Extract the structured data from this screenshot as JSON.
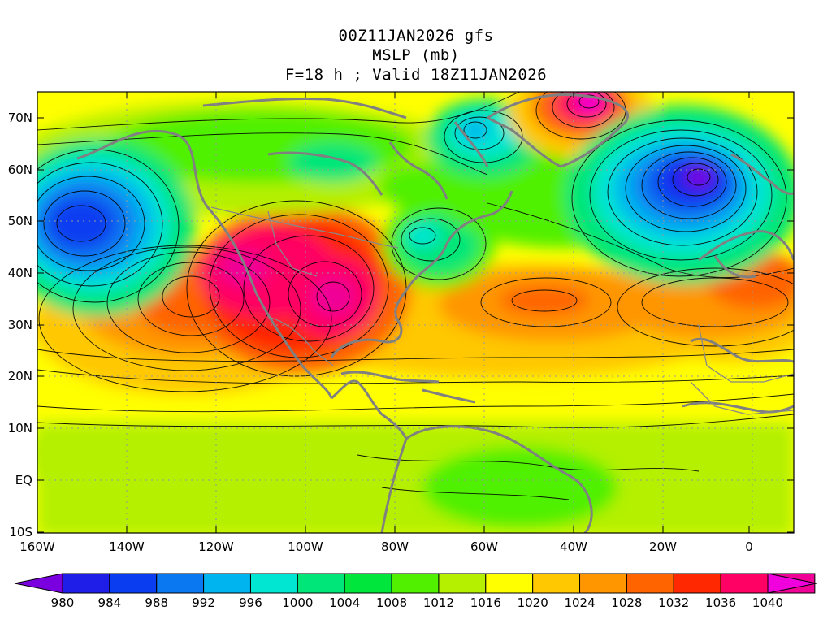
{
  "header": {
    "run_line": "00Z11JAN2026 gfs",
    "field_line": "MSLP (mb)",
    "valid_line": "F=18 h ; Valid 18Z11JAN2026"
  },
  "axes": {
    "lat_labels": [
      "70N",
      "60N",
      "50N",
      "40N",
      "30N",
      "20N",
      "10N",
      "EQ",
      "10S"
    ],
    "lon_labels": [
      "160W",
      "140W",
      "120W",
      "100W",
      "80W",
      "60W",
      "40W",
      "20W",
      "0"
    ]
  },
  "colorbar": {
    "labels": [
      "980",
      "984",
      "988",
      "992",
      "996",
      "1000",
      "1004",
      "1008",
      "1012",
      "1016",
      "1020",
      "1024",
      "1028",
      "1032",
      "1036",
      "1040"
    ],
    "colors": [
      "#7b00e0",
      "#1e1ee8",
      "#0a3cf0",
      "#0a78f0",
      "#00b4f0",
      "#00e6d2",
      "#00e678",
      "#00e63c",
      "#50f000",
      "#b4f000",
      "#ffff00",
      "#ffc800",
      "#ff9600",
      "#ff6400",
      "#ff2800",
      "#ff0064",
      "#f00096",
      "#f000dc"
    ]
  }
}
